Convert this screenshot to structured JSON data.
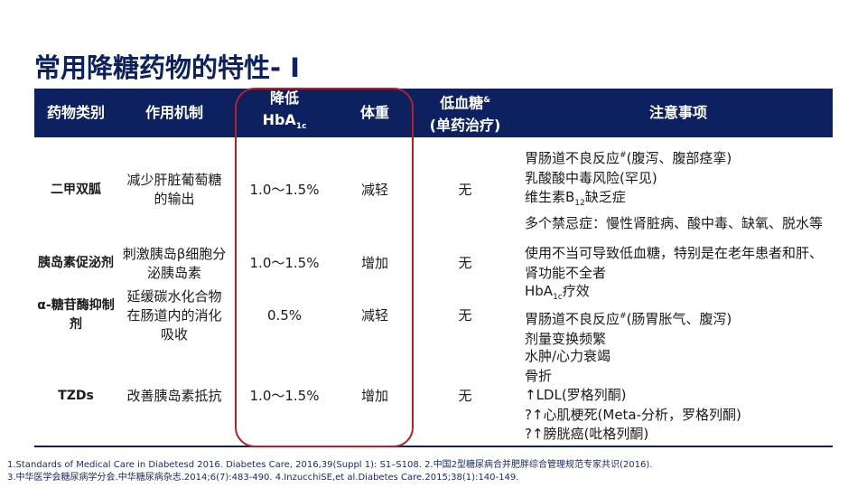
{
  "title": "常用降糖药物的特性- Ⅰ",
  "colors": {
    "header_bg": "#0d2160",
    "highlight_border": "#b5202a"
  },
  "header": {
    "drug_class": "药物类别",
    "mechanism": "作用机制",
    "hba1c_line1": "降低",
    "hba1c_main": "HbA",
    "hba1c_sub": "1c",
    "weight": "体重",
    "hypo_line1": "低血糖",
    "hypo_sup": "&",
    "hypo_line2": "(单药治疗)",
    "notes": "注意事项"
  },
  "rows": [
    {
      "drug": "二甲双胍",
      "mechanism": "减少肝脏葡萄糖的输出",
      "hba1c": "1.0～1.5%",
      "weight": "减轻",
      "hypo": "无",
      "notes": [
        [
          {
            "t": "胃肠道不良反应"
          },
          {
            "sup": "#"
          },
          {
            "t": "(腹泻、腹部痉挛)"
          }
        ],
        [
          {
            "t": "乳酸酸中毒风险(罕见)"
          }
        ],
        [
          {
            "t": "维生素B"
          },
          {
            "sub": "12"
          },
          {
            "t": "缺乏症"
          }
        ],
        [
          {
            "t": "多个禁忌症：慢性肾脏病、酸中毒、缺氧、脱水等"
          }
        ]
      ]
    },
    {
      "drug": "胰岛素促泌剂",
      "mechanism": "刺激胰岛β细胞分泌胰岛素",
      "hba1c": "1.0～1.5%",
      "weight": "增加",
      "hypo": "无",
      "notes": [
        [
          {
            "t": "使用不当可导致低血糖，特别是在老年患者和肝、肾功能不全者"
          }
        ]
      ]
    },
    {
      "drug": "α-糖苷酶抑制剂",
      "mechanism": "延缓碳水化合物在肠道内的消化吸收",
      "hba1c": "0.5%",
      "weight": "减轻",
      "hypo": "无",
      "notes": [
        [
          {
            "t": "HbA"
          },
          {
            "sub": "1c"
          },
          {
            "t": "疗效"
          }
        ],
        [
          {
            "t": "胃肠道不良反应"
          },
          {
            "sup": "#"
          },
          {
            "t": "(肠胃胀气、腹泻)"
          }
        ],
        [
          {
            "t": "剂量变换频繁"
          }
        ]
      ]
    },
    {
      "drug": "TZDs",
      "mechanism": "改善胰岛素抵抗",
      "hba1c": "1.0～1.5%",
      "weight": "增加",
      "hypo": "无",
      "notes": [
        [
          {
            "t": "水肿/心力衰竭"
          }
        ],
        [
          {
            "t": "骨折"
          }
        ],
        [
          {
            "t": "↑LDL(罗格列酮)"
          }
        ],
        [
          {
            "t": "?↑心肌梗死(Meta-分析，罗格列酮)"
          }
        ],
        [
          {
            "t": "?↑膀胱癌(吡格列酮)"
          }
        ]
      ]
    }
  ],
  "references": [
    "1.Standards of Medical Care in Diabetesd 2016. Diabetes Care, 2016,39(Suppl 1): S1–S108.  2.中国2型糖尿病合并肥胖综合管理规范专家共识(2016).",
    "3.中华医学会糖尿病学分会.中华糖尿病杂志.2014;6(7):483-490.  4.InzucchiSE,et al.Diabetes Care.2015;38(1):140-149."
  ]
}
